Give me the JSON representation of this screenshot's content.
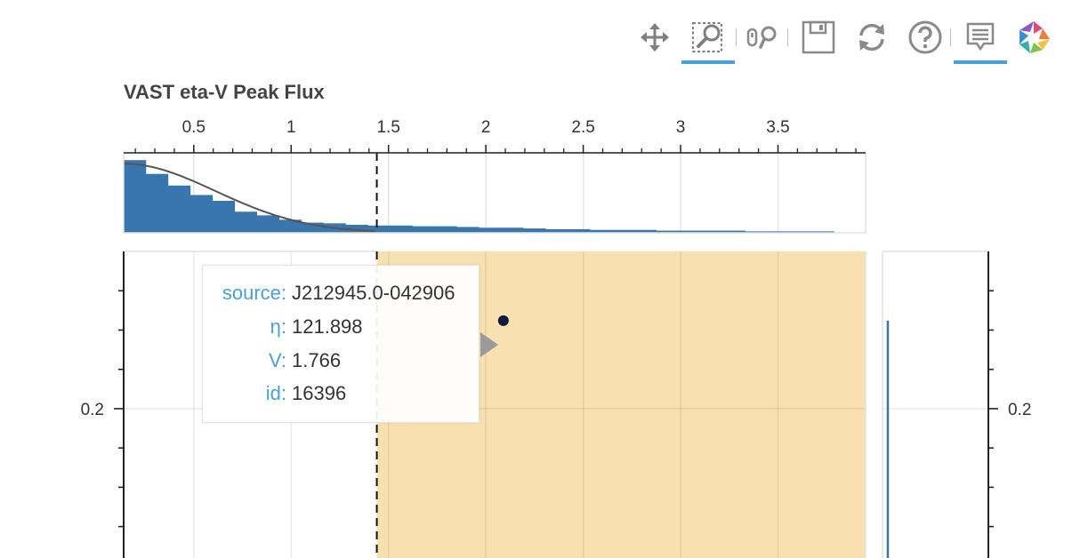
{
  "toolbar": {
    "tools": [
      {
        "name": "pan-tool",
        "icon": "move-arrows-icon",
        "active": false
      },
      {
        "name": "box-zoom-tool",
        "icon": "box-zoom-icon",
        "active": true
      },
      {
        "name": "wheel-zoom-tool",
        "icon": "wheel-zoom-icon",
        "active": false
      },
      {
        "name": "save-tool",
        "icon": "floppy-disk-icon",
        "active": false
      },
      {
        "name": "reset-tool",
        "icon": "reset-icon",
        "active": false
      },
      {
        "name": "help-tool",
        "icon": "question-mark-icon",
        "active": false
      },
      {
        "name": "hover-tool",
        "icon": "hover-tooltip-icon",
        "active": true
      },
      {
        "name": "bokeh-logo",
        "icon": "bokeh-logo-icon",
        "active": false
      }
    ],
    "accent": "#4a9fd6"
  },
  "chart_data": [
    {
      "type": "bar",
      "title": "VAST eta-V Peak Flux",
      "xlabel": "",
      "ylabel": "",
      "xlim": [
        0.14,
        3.95
      ],
      "ylim": [
        0,
        1.1
      ],
      "x_ticks": [
        0.5,
        1,
        1.5,
        2,
        2.5,
        3,
        3.5
      ],
      "x_tick_labels": [
        "0.5",
        "1",
        "1.5",
        "2",
        "2.5",
        "3",
        "3.5"
      ],
      "bin_width": 0.114,
      "bin_start": 0.14,
      "values": [
        1.0,
        0.81,
        0.65,
        0.52,
        0.44,
        0.29,
        0.24,
        0.18,
        0.14,
        0.13,
        0.11,
        0.1,
        0.1,
        0.09,
        0.09,
        0.08,
        0.07,
        0.07,
        0.06,
        0.05,
        0.05,
        0.04,
        0.04,
        0.04,
        0.03,
        0.03,
        0.03,
        0.03,
        0.02,
        0.02,
        0.02,
        0.02
      ],
      "fit_curve": {
        "type": "gaussian",
        "peak": 0.95,
        "center": 0.14,
        "sigma": 0.47,
        "color": "#555555"
      },
      "threshold": 1.44,
      "grid": true,
      "bar_color": "#3a76ae"
    },
    {
      "type": "scatter",
      "x_ticks": [
        0.5,
        1,
        1.5,
        2,
        2.5,
        3,
        3.5
      ],
      "y_tick_labels_left": [
        "0.2"
      ],
      "y_tick_labels_right": [
        "0.2"
      ],
      "y_label_value": 0.2,
      "ylim": [
        0.01,
        0.4
      ],
      "xlim": [
        0.14,
        3.95
      ],
      "highlight_region": {
        "x_from": 1.44,
        "x_to": 3.95,
        "color": "#f8e1b0"
      },
      "threshold": 1.44,
      "points": [
        {
          "x": 2.09,
          "y": 0.312,
          "color": "#0d1a3a"
        }
      ],
      "grid": true
    }
  ],
  "tooltip": {
    "rows": [
      {
        "key": "source:",
        "value": "J212945.0-042906"
      },
      {
        "key": "η:",
        "value": "121.898"
      },
      {
        "key": "V:",
        "value": "1.766"
      },
      {
        "key": "id:",
        "value": "16396"
      }
    ],
    "key_color": "#4a9fd6"
  }
}
